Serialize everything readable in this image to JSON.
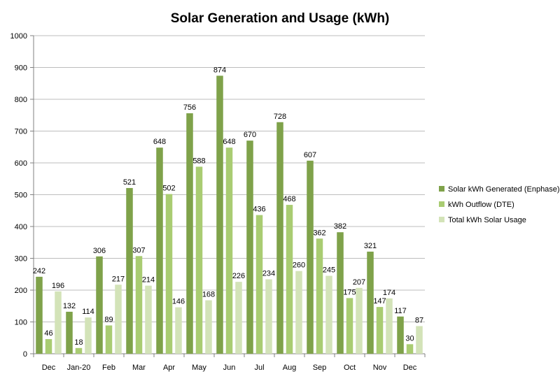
{
  "chart_data": {
    "type": "bar",
    "title": "Solar Generation and Usage (kWh)",
    "xlabel": "",
    "ylabel": "",
    "ylim": [
      0,
      1000
    ],
    "yticks": [
      0,
      100,
      200,
      300,
      400,
      500,
      600,
      700,
      800,
      900,
      1000
    ],
    "grid": true,
    "legend_position": "right",
    "categories": [
      "Dec",
      "Jan-20",
      "Feb",
      "Mar",
      "Apr",
      "May",
      "Jun",
      "Jul",
      "Aug",
      "Sep",
      "Oct",
      "Nov",
      "Dec"
    ],
    "series": [
      {
        "name": "Solar kWh Generated (Enphase)",
        "color": "#7fa24a",
        "values": [
          242,
          132,
          306,
          521,
          648,
          756,
          874,
          670,
          728,
          607,
          382,
          321,
          117
        ]
      },
      {
        "name": "kWh Outflow (DTE)",
        "color": "#a9cc72",
        "values": [
          46,
          18,
          89,
          307,
          502,
          588,
          648,
          436,
          468,
          362,
          175,
          147,
          30
        ]
      },
      {
        "name": "Total kWh Solar Usage",
        "color": "#d3e3b8",
        "values": [
          196,
          114,
          217,
          214,
          146,
          168,
          226,
          234,
          260,
          245,
          207,
          174,
          87
        ]
      }
    ]
  }
}
